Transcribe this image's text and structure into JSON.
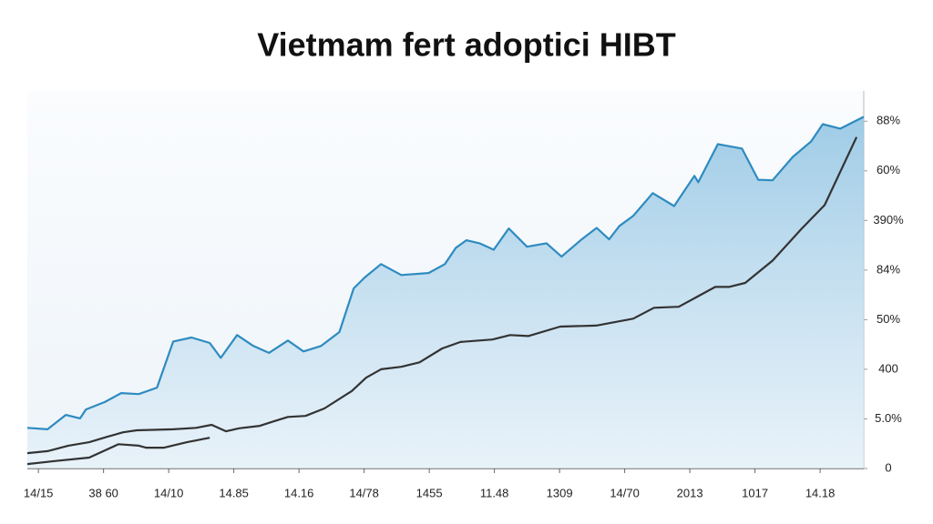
{
  "chart_data": {
    "type": "line",
    "title": "Vietmam fert adoptici HIBT",
    "categories": [
      "14/15",
      "38 60",
      "14/10",
      "14.85",
      "14.16",
      "14/78",
      "1455",
      "11.48",
      "1309",
      "14/70",
      "2013",
      "1017",
      "14.18"
    ],
    "xlim": [
      -0.17,
      12.67
    ],
    "ylim": [
      0,
      7.5
    ],
    "yticks": [
      {
        "value": 0,
        "label": "0"
      },
      {
        "value": 1,
        "label": "5.0%"
      },
      {
        "value": 2,
        "label": "400"
      },
      {
        "value": 3,
        "label": "50%"
      },
      {
        "value": 4,
        "label": "84%"
      },
      {
        "value": 5,
        "label": "390%"
      },
      {
        "value": 6,
        "label": "60%"
      },
      {
        "value": 7,
        "label": "88%"
      }
    ],
    "series": [
      {
        "color": "#2e8bc0",
        "area": true,
        "x": [
          -0.17,
          0.14,
          0.42,
          0.64,
          0.73,
          1.02,
          1.27,
          1.54,
          1.82,
          2.07,
          2.35,
          2.63,
          2.8,
          3.05,
          3.3,
          3.54,
          3.83,
          4.07,
          4.34,
          4.62,
          4.84,
          5.01,
          5.26,
          5.57,
          5.99,
          6.24,
          6.41,
          6.57,
          6.77,
          6.99,
          7.22,
          7.5,
          7.8,
          8.03,
          8.34,
          8.57,
          8.76,
          8.92,
          9.13,
          9.43,
          9.76,
          10.07,
          10.13,
          10.43,
          10.8,
          11.05,
          11.27,
          11.58,
          11.86,
          12.04,
          12.31,
          12.67
        ],
        "values": [
          0.82,
          0.79,
          1.08,
          1.01,
          1.19,
          1.34,
          1.52,
          1.5,
          1.63,
          2.56,
          2.64,
          2.53,
          2.23,
          2.69,
          2.47,
          2.33,
          2.58,
          2.36,
          2.47,
          2.75,
          3.63,
          3.85,
          4.12,
          3.9,
          3.94,
          4.12,
          4.45,
          4.6,
          4.54,
          4.41,
          4.84,
          4.47,
          4.54,
          4.27,
          4.62,
          4.85,
          4.62,
          4.89,
          5.09,
          5.55,
          5.29,
          5.9,
          5.77,
          6.54,
          6.45,
          5.82,
          5.81,
          6.28,
          6.59,
          6.94,
          6.85,
          7.09
        ]
      },
      {
        "color": "#333333",
        "area": false,
        "x": [
          -0.17,
          0.14,
          0.46,
          0.78,
          1.06,
          1.3,
          1.51,
          2.07,
          2.42,
          2.66,
          2.88,
          3.08,
          3.4,
          3.61,
          3.83,
          4.1,
          4.39,
          4.81,
          5.03,
          5.26,
          5.57,
          5.85,
          6.2,
          6.48,
          6.97,
          7.24,
          7.52,
          8.01,
          8.56,
          9.13,
          9.45,
          9.83,
          10.39,
          10.6,
          10.85,
          11.27,
          11.72,
          12.07,
          12.56
        ],
        "values": [
          0.31,
          0.35,
          0.46,
          0.53,
          0.64,
          0.73,
          0.77,
          0.79,
          0.82,
          0.88,
          0.75,
          0.81,
          0.86,
          0.95,
          1.04,
          1.06,
          1.21,
          1.56,
          1.83,
          2.0,
          2.05,
          2.14,
          2.42,
          2.55,
          2.6,
          2.69,
          2.67,
          2.86,
          2.88,
          3.02,
          3.24,
          3.26,
          3.66,
          3.66,
          3.74,
          4.19,
          4.84,
          5.31,
          6.68
        ]
      },
      {
        "color": "#333333",
        "area": false,
        "x": [
          -0.17,
          0.25,
          0.78,
          1.23,
          1.54,
          1.65,
          1.93,
          2.28,
          2.63
        ],
        "values": [
          0.09,
          0.15,
          0.22,
          0.49,
          0.46,
          0.42,
          0.42,
          0.53,
          0.62
        ]
      }
    ]
  }
}
